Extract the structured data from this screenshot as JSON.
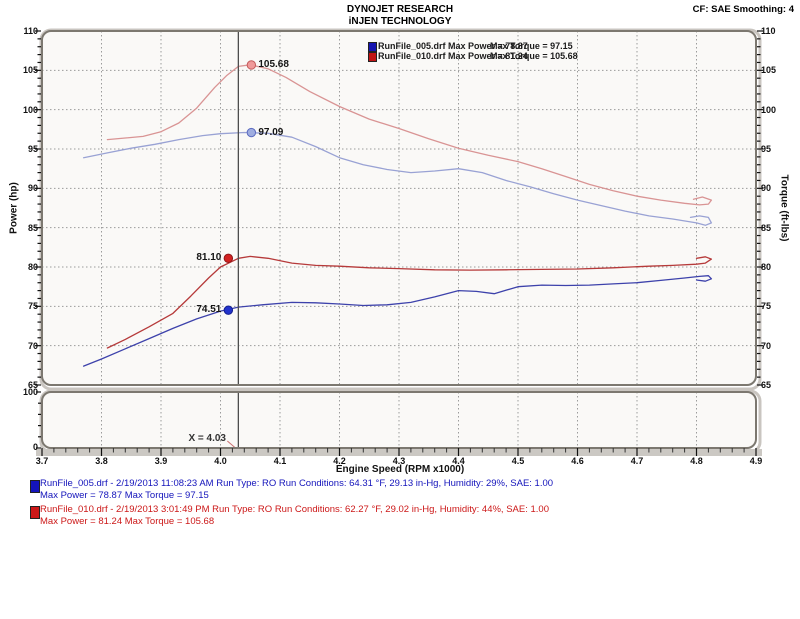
{
  "header": {
    "line1": "DYNOJET RESEARCH",
    "line2": "iNJEN TECHNOLOGY",
    "cf": "CF: SAE  Smoothing: 4"
  },
  "legend": {
    "rows": [
      {
        "left": "RunFile_005.drf Max Power = 78.87",
        "right": "Max Torque = 97.15",
        "color": "#1515b0"
      },
      {
        "left": "RunFile_010.drf Max Power = 81.24",
        "right": "Max Torque = 105.68",
        "color": "#c01414"
      }
    ]
  },
  "chart_data": {
    "type": "line",
    "xlabel": "Engine Speed (RPM x1000)",
    "ylabel_left": "Power (hp)",
    "ylabel_right": "Torque (ft-lbs)",
    "x_range": [
      3.7,
      4.9
    ],
    "x_tick_labels": [
      "3.7",
      "3.8",
      "3.9",
      "4.0",
      "4.1",
      "4.2",
      "4.3",
      "4.4",
      "4.5",
      "4.6",
      "4.7",
      "4.8",
      "4.9"
    ],
    "y_range": [
      65,
      110
    ],
    "y_ticks": [
      65,
      70,
      75,
      80,
      85,
      90,
      95,
      100,
      105,
      110
    ],
    "grid": true,
    "sub_panel": {
      "y_range": [
        0,
        100
      ],
      "y_tick_labels": [
        "100",
        "0"
      ]
    },
    "cursor": {
      "x": 4.03,
      "label": "X = 4.03"
    },
    "series": [
      {
        "name": "RunFile_005.drf Torque",
        "axis": "torque",
        "color": "#99a2d4",
        "points": [
          [
            3.77,
            93.9
          ],
          [
            3.81,
            94.5
          ],
          [
            3.85,
            95.1
          ],
          [
            3.89,
            95.6
          ],
          [
            3.93,
            96.2
          ],
          [
            3.97,
            96.7
          ],
          [
            4.0,
            96.95
          ],
          [
            4.04,
            97.1
          ],
          [
            4.08,
            97.0
          ],
          [
            4.12,
            96.5
          ],
          [
            4.16,
            95.3
          ],
          [
            4.2,
            93.9
          ],
          [
            4.24,
            93.0
          ],
          [
            4.28,
            92.4
          ],
          [
            4.32,
            92.0
          ],
          [
            4.36,
            92.2
          ],
          [
            4.4,
            92.5
          ],
          [
            4.44,
            92.0
          ],
          [
            4.48,
            91.0
          ],
          [
            4.52,
            90.2
          ],
          [
            4.56,
            89.3
          ],
          [
            4.6,
            88.5
          ],
          [
            4.64,
            87.8
          ],
          [
            4.68,
            87.1
          ],
          [
            4.72,
            86.5
          ],
          [
            4.76,
            86.1
          ],
          [
            4.8,
            85.6
          ],
          [
            4.815,
            85.3
          ],
          [
            4.825,
            85.6
          ],
          [
            4.82,
            86.3
          ],
          [
            4.805,
            86.5
          ],
          [
            4.79,
            86.3
          ]
        ]
      },
      {
        "name": "RunFile_010.drf Torque",
        "axis": "torque",
        "color": "#d99494",
        "points": [
          [
            3.81,
            96.2
          ],
          [
            3.84,
            96.4
          ],
          [
            3.87,
            96.6
          ],
          [
            3.9,
            97.2
          ],
          [
            3.93,
            98.3
          ],
          [
            3.96,
            100.2
          ],
          [
            3.99,
            102.8
          ],
          [
            4.01,
            104.3
          ],
          [
            4.03,
            105.5
          ],
          [
            4.05,
            105.7
          ],
          [
            4.08,
            105.2
          ],
          [
            4.11,
            104.1
          ],
          [
            4.15,
            102.3
          ],
          [
            4.2,
            100.4
          ],
          [
            4.25,
            98.8
          ],
          [
            4.3,
            97.6
          ],
          [
            4.35,
            96.3
          ],
          [
            4.4,
            95.1
          ],
          [
            4.45,
            94.2
          ],
          [
            4.5,
            93.4
          ],
          [
            4.54,
            92.5
          ],
          [
            4.58,
            91.5
          ],
          [
            4.62,
            90.5
          ],
          [
            4.66,
            89.7
          ],
          [
            4.7,
            89.0
          ],
          [
            4.74,
            88.5
          ],
          [
            4.78,
            88.1
          ],
          [
            4.805,
            87.9
          ],
          [
            4.82,
            88.0
          ],
          [
            4.825,
            88.5
          ],
          [
            4.81,
            88.9
          ],
          [
            4.795,
            88.6
          ]
        ]
      },
      {
        "name": "RunFile_005.drf Power",
        "axis": "power",
        "color": "#3d42ab",
        "points": [
          [
            3.77,
            67.4
          ],
          [
            3.8,
            68.3
          ],
          [
            3.84,
            69.6
          ],
          [
            3.88,
            70.9
          ],
          [
            3.92,
            72.2
          ],
          [
            3.96,
            73.4
          ],
          [
            4.0,
            74.4
          ],
          [
            4.03,
            74.9
          ],
          [
            4.07,
            75.2
          ],
          [
            4.12,
            75.5
          ],
          [
            4.16,
            75.45
          ],
          [
            4.2,
            75.3
          ],
          [
            4.24,
            75.1
          ],
          [
            4.28,
            75.2
          ],
          [
            4.32,
            75.5
          ],
          [
            4.36,
            76.2
          ],
          [
            4.4,
            77.0
          ],
          [
            4.43,
            76.9
          ],
          [
            4.46,
            76.6
          ],
          [
            4.5,
            77.5
          ],
          [
            4.54,
            77.7
          ],
          [
            4.58,
            77.65
          ],
          [
            4.62,
            77.7
          ],
          [
            4.66,
            77.85
          ],
          [
            4.7,
            78.0
          ],
          [
            4.74,
            78.3
          ],
          [
            4.78,
            78.6
          ],
          [
            4.805,
            78.8
          ],
          [
            4.82,
            78.9
          ],
          [
            4.825,
            78.5
          ],
          [
            4.815,
            78.2
          ],
          [
            4.8,
            78.35
          ]
        ]
      },
      {
        "name": "RunFile_010.drf Power",
        "axis": "power",
        "color": "#b63a3a",
        "points": [
          [
            3.81,
            69.7
          ],
          [
            3.84,
            70.8
          ],
          [
            3.88,
            72.4
          ],
          [
            3.92,
            74.1
          ],
          [
            3.95,
            76.3
          ],
          [
            3.98,
            78.6
          ],
          [
            4.0,
            80.0
          ],
          [
            4.03,
            81.1
          ],
          [
            4.05,
            81.35
          ],
          [
            4.08,
            81.1
          ],
          [
            4.12,
            80.5
          ],
          [
            4.16,
            80.2
          ],
          [
            4.2,
            80.1
          ],
          [
            4.25,
            79.9
          ],
          [
            4.3,
            79.8
          ],
          [
            4.36,
            79.65
          ],
          [
            4.42,
            79.6
          ],
          [
            4.48,
            79.65
          ],
          [
            4.54,
            79.7
          ],
          [
            4.6,
            79.75
          ],
          [
            4.66,
            79.9
          ],
          [
            4.72,
            80.1
          ],
          [
            4.76,
            80.2
          ],
          [
            4.8,
            80.35
          ],
          [
            4.815,
            80.5
          ],
          [
            4.825,
            81.0
          ],
          [
            4.815,
            81.3
          ],
          [
            4.8,
            81.1
          ]
        ]
      }
    ],
    "markers": [
      {
        "label": "105.68",
        "value": 105.68,
        "side": "right",
        "dot_fill": "#f09a9a",
        "dot_stroke": "#c35b5b"
      },
      {
        "label": "97.09",
        "value": 97.09,
        "side": "right",
        "dot_fill": "#9fade0",
        "dot_stroke": "#5b6bc0"
      },
      {
        "label": "81.10",
        "value": 81.1,
        "side": "left",
        "dot_fill": "#d32222",
        "dot_stroke": "#8f1515"
      },
      {
        "label": "74.51",
        "value": 74.51,
        "side": "left",
        "dot_fill": "#2233cc",
        "dot_stroke": "#151f8f"
      }
    ]
  },
  "runs": [
    {
      "color": "#1414bb",
      "line1": "RunFile_005.drf - 2/19/2013 11:08:23 AM  Run Type: RO  Run Conditions: 64.31 °F, 29.13 in-Hg,  Humidity:  29%, SAE: 1.00",
      "line2": "Max Power = 78.87  Max Torque = 97.15"
    },
    {
      "color": "#cc1818",
      "line1": "RunFile_010.drf - 2/19/2013 3:01:49 PM  Run Type: RO  Run Conditions: 62.27 °F, 29.02 in-Hg,  Humidity:  44%, SAE: 1.00",
      "line2": "Max Power = 81.24  Max Torque = 105.68"
    }
  ]
}
